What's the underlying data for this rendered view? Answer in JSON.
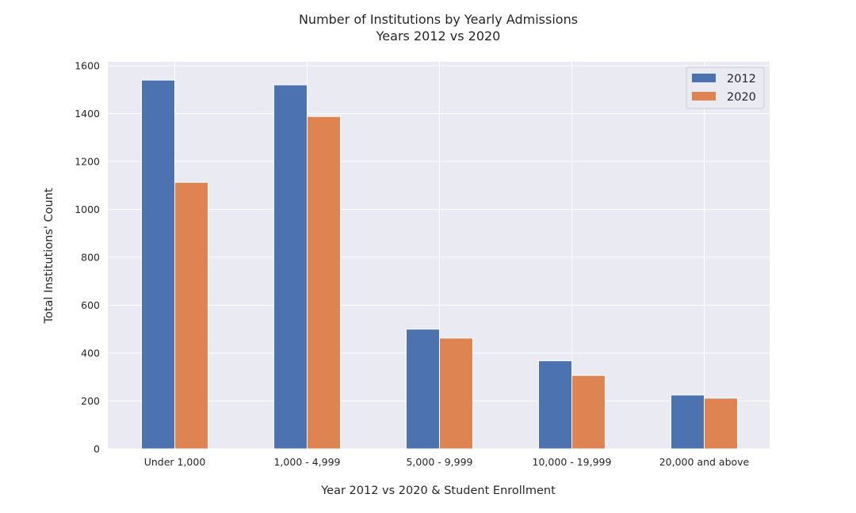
{
  "chart_data": {
    "type": "bar",
    "title": "Number of Institutions by Yearly Admissions",
    "subtitle": "Years 2012 vs 2020",
    "xlabel": "Year 2012 vs 2020 & Student Enrollment",
    "ylabel": "Total Institutions' Count",
    "categories": [
      "Under 1,000",
      "1,000 - 4,999",
      "5,000 - 9,999",
      "10,000 - 19,999",
      "20,000 and above"
    ],
    "series": [
      {
        "name": "2012",
        "color": "#4c72b0",
        "values": [
          1540,
          1520,
          500,
          368,
          225
        ]
      },
      {
        "name": "2020",
        "color": "#dd8452",
        "values": [
          1113,
          1388,
          463,
          307,
          212
        ]
      }
    ],
    "ylim": [
      0,
      1600
    ],
    "yticks": [
      0,
      200,
      400,
      600,
      800,
      1000,
      1200,
      1400,
      1600
    ],
    "grid": true,
    "legend_position": "top-right",
    "plot_background": "#eaeaf2"
  }
}
